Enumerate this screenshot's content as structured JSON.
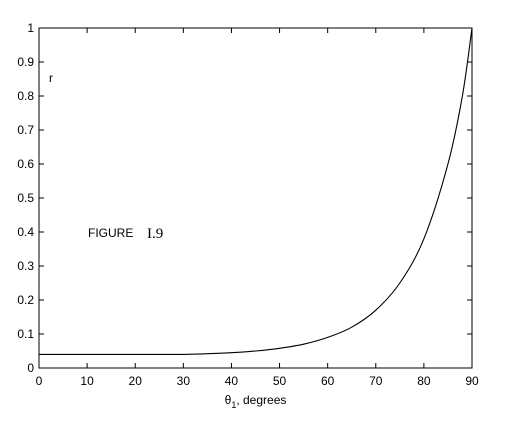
{
  "chart_data": {
    "type": "line",
    "xlabel": "θ1, degrees",
    "xlabel_main": "θ",
    "xlabel_sub": "1",
    "xlabel_rest": ", degrees",
    "ylabel": "r",
    "xlim": [
      0,
      90
    ],
    "ylim": [
      0,
      1
    ],
    "x_ticks": [
      0,
      10,
      20,
      30,
      40,
      50,
      60,
      70,
      80,
      90
    ],
    "y_ticks": [
      0,
      0.1,
      0.2,
      0.3,
      0.4,
      0.5,
      0.6,
      0.7,
      0.8,
      0.9,
      1
    ],
    "grid": false,
    "annotation": {
      "word": "FIGURE",
      "number": "I.9"
    },
    "series": [
      {
        "x": [
          0,
          10,
          20,
          30,
          35,
          40,
          45,
          50,
          55,
          60,
          65,
          70,
          75,
          80,
          85,
          88,
          90
        ],
        "y": [
          0.04,
          0.04,
          0.04,
          0.04,
          0.042,
          0.045,
          0.05,
          0.058,
          0.07,
          0.09,
          0.12,
          0.17,
          0.25,
          0.38,
          0.6,
          0.8,
          1.0
        ]
      }
    ]
  }
}
